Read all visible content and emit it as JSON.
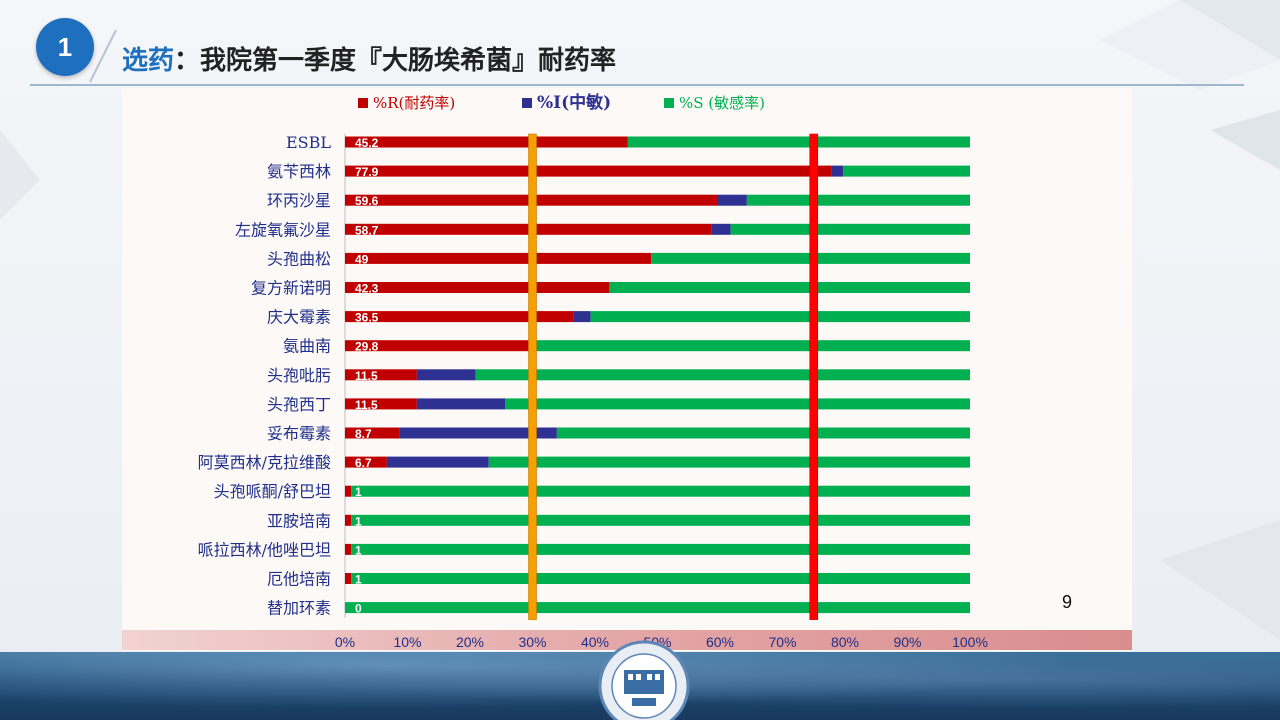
{
  "header": {
    "badge": "1",
    "title_highlight": "选药",
    "title_rest": "：我院第一季度『大肠埃希菌』耐药率"
  },
  "page_number": "9",
  "colors": {
    "resistant": "#c00000",
    "intermediate": "#2e3192",
    "sensitive": "#00b050",
    "line_30": "#f5a000",
    "line_75": "#ff0000",
    "title_accent": "#1f6fbf"
  },
  "chart_data": {
    "type": "bar",
    "orientation": "horizontal",
    "stacked": true,
    "categories": [
      "ESBL",
      "氨苄西林",
      "环丙沙星",
      "左旋氧氟沙星",
      "头孢曲松",
      "复方新诺明",
      "庆大霉素",
      "氨曲南",
      "头孢吡肟",
      "头孢西丁",
      "妥布霉素",
      "阿莫西林/克拉维酸",
      "头孢哌酮/舒巴坦",
      "亚胺培南",
      "哌拉西林/他唑巴坦",
      "厄他培南",
      "替加环素"
    ],
    "series": [
      {
        "name": "%R(耐药率)",
        "values": [
          45.2,
          77.9,
          59.6,
          58.7,
          49,
          42.3,
          36.5,
          29.8,
          11.5,
          11.5,
          8.7,
          6.7,
          1,
          1,
          1,
          1,
          0
        ]
      },
      {
        "name": "%I(中敏)",
        "values": [
          0,
          1.8,
          4.7,
          3.0,
          0,
          0,
          2.8,
          0,
          9.4,
          14.1,
          25.2,
          16.3,
          0,
          0,
          0,
          0,
          0
        ]
      },
      {
        "name": "%S (敏感率)",
        "values": [
          54.8,
          20.3,
          35.7,
          38.3,
          51,
          57.7,
          60.7,
          70.2,
          79.1,
          74.4,
          66.1,
          77,
          99,
          99,
          99,
          99,
          100
        ]
      }
    ],
    "data_labels": [
      "45.2",
      "77.9",
      "59.6",
      "58.7",
      "49",
      "42.3",
      "36.5",
      "29.8",
      "11.5",
      "11.5",
      "8.7",
      "6.7",
      "1",
      "1",
      "1",
      "1",
      "0"
    ],
    "xlim": [
      0,
      100
    ],
    "x_ticks": [
      "0%",
      "10%",
      "20%",
      "30%",
      "40%",
      "50%",
      "60%",
      "70%",
      "80%",
      "90%",
      "100%"
    ],
    "reference_lines": [
      30,
      75
    ],
    "legend_position": "top",
    "grid": false
  }
}
